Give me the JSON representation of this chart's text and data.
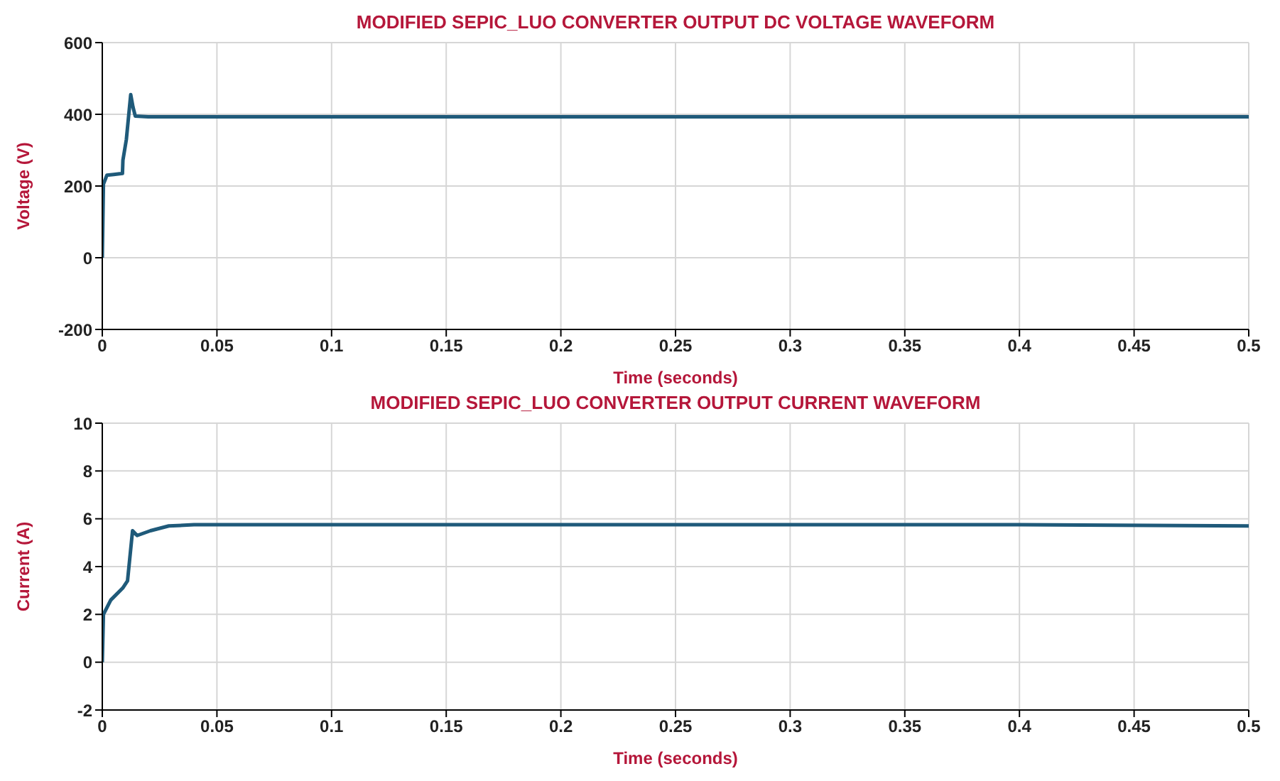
{
  "chart_data": [
    {
      "type": "line",
      "title": "MODIFIED SEPIC_LUO CONVERTER OUTPUT DC VOLTAGE WAVEFORM",
      "xlabel": "Time (seconds)",
      "ylabel": "Voltage (V)",
      "xlim": [
        0,
        0.5
      ],
      "xticks": [
        0,
        0.05,
        0.1,
        0.15,
        0.2,
        0.25,
        0.3,
        0.35,
        0.4,
        0.45,
        0.5
      ],
      "ylim": [
        -200,
        600
      ],
      "yticks": [
        -200,
        0,
        200,
        400,
        600
      ],
      "grid": true,
      "series": [
        {
          "color": "#1f5a7a",
          "x": [
            0,
            0.0005,
            0.002,
            0.005,
            0.0088,
            0.009,
            0.0105,
            0.0124,
            0.0134,
            0.0144,
            0.02,
            0.05,
            0.1,
            0.2,
            0.3,
            0.4,
            0.5
          ],
          "values": [
            0,
            205,
            230,
            232,
            235,
            272,
            330,
            455,
            420,
            395,
            393,
            393,
            393,
            393,
            393,
            393,
            393
          ]
        }
      ]
    },
    {
      "type": "line",
      "title": "MODIFIED SEPIC_LUO CONVERTER OUTPUT CURRENT WAVEFORM",
      "xlabel": "Time (seconds)",
      "ylabel": "Current (A)",
      "xlim": [
        0,
        0.5
      ],
      "xticks": [
        0,
        0.05,
        0.1,
        0.15,
        0.2,
        0.25,
        0.3,
        0.35,
        0.4,
        0.45,
        0.5
      ],
      "ylim": [
        -2,
        10
      ],
      "yticks": [
        -2,
        0,
        2,
        4,
        6,
        8,
        10
      ],
      "grid": true,
      "series": [
        {
          "color": "#1f5a7a",
          "x": [
            0,
            0.0005,
            0.0037,
            0.0089,
            0.011,
            0.0132,
            0.0152,
            0.021,
            0.029,
            0.04,
            0.1,
            0.2,
            0.3,
            0.4,
            0.5
          ],
          "values": [
            0,
            2,
            2.6,
            3.1,
            3.4,
            5.5,
            5.3,
            5.5,
            5.7,
            5.75,
            5.75,
            5.75,
            5.75,
            5.75,
            5.7
          ]
        }
      ]
    }
  ]
}
